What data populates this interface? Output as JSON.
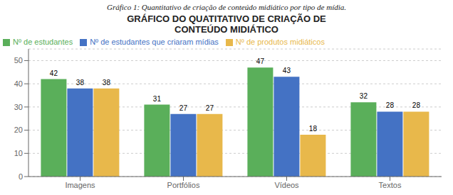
{
  "chart_data": {
    "type": "bar",
    "title": "GRÁFICO DO QUATITATIVO DE CRIAÇÃO DE\nCONTEÚDO MIDIÁTICO",
    "subtitle": "Gráfico 1: Quantitativo de criação de conteúdo midiático por tipo de mídia.",
    "categories": [
      "Imagens",
      "Portfólios",
      "Vídeos",
      "Textos"
    ],
    "series": [
      {
        "name": "Nº de estudantes",
        "color": "#5AAF5A",
        "values": [
          42,
          31,
          47,
          32
        ]
      },
      {
        "name": "Nº de estudantes que criaram mídias",
        "color": "#4472C4",
        "values": [
          38,
          27,
          43,
          28
        ]
      },
      {
        "name": "Nº de produtos midiáticos",
        "color": "#E8B84B",
        "values": [
          38,
          27,
          18,
          28
        ]
      }
    ],
    "ylim": [
      0,
      55
    ],
    "yticks": [
      0,
      10,
      20,
      30,
      40,
      50
    ],
    "grid": true,
    "data_labels": true,
    "legend": "upper left"
  }
}
